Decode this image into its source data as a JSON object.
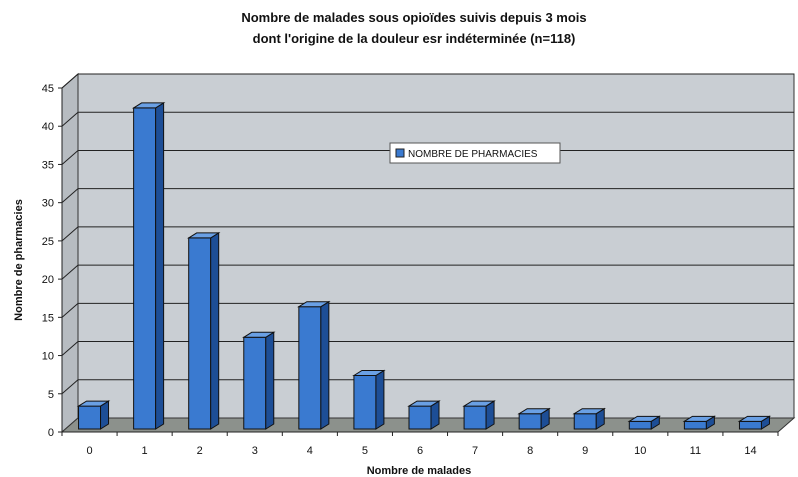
{
  "chart_data": {
    "type": "bar",
    "title": [
      "Nombre de malades sous opioïdes suivis depuis 3 mois",
      "dont l'origine de la douleur esr indéterminée (n=118)"
    ],
    "xlabel": "Nombre de malades",
    "ylabel": "Nombre de pharmacies",
    "categories": [
      "0",
      "1",
      "2",
      "3",
      "4",
      "5",
      "6",
      "7",
      "8",
      "9",
      "10",
      "11",
      "14"
    ],
    "series": [
      {
        "name": "NOMBRE DE PHARMACIES",
        "values": [
          3,
          42,
          25,
          12,
          16,
          7,
          3,
          3,
          2,
          2,
          1,
          1,
          1
        ]
      }
    ],
    "ylim": [
      0,
      45
    ],
    "yticks": [
      0,
      5,
      10,
      15,
      20,
      25,
      30,
      35,
      40,
      45
    ],
    "grid": true,
    "legend": "top-center, inside plot",
    "colors": {
      "bar_front": "#3a7ad0",
      "bar_side": "#1d4e96",
      "bar_top": "#6aa0e4",
      "wall": "#c9ced3",
      "floor": "#8c918c"
    }
  }
}
